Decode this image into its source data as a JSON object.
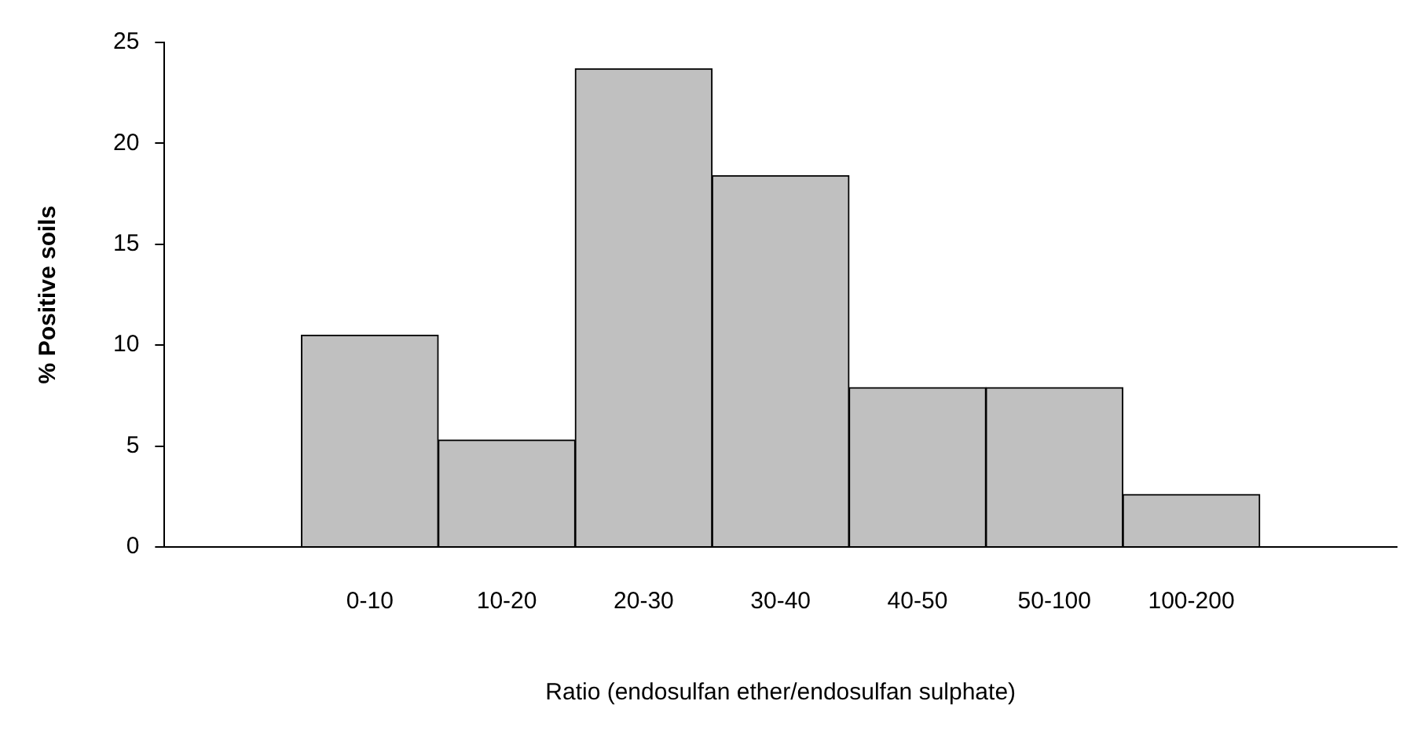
{
  "chart_data": {
    "type": "bar",
    "xlabel": "Ratio (endosulfan ether/endosulfan sulphate)",
    "ylabel": "% Positive soils",
    "categories": [
      null,
      "0-10",
      "10-20",
      "20-30",
      "30-40",
      "40-50",
      "50-100",
      "100-200",
      null
    ],
    "values": [
      null,
      10.5,
      5.3,
      23.7,
      18.4,
      7.9,
      7.9,
      2.6,
      null
    ],
    "color": "#c0c0c0",
    "ylim": [
      0,
      25
    ],
    "yticks": [
      0,
      5,
      10,
      15,
      20,
      25
    ],
    "grid": false,
    "legend": false
  }
}
